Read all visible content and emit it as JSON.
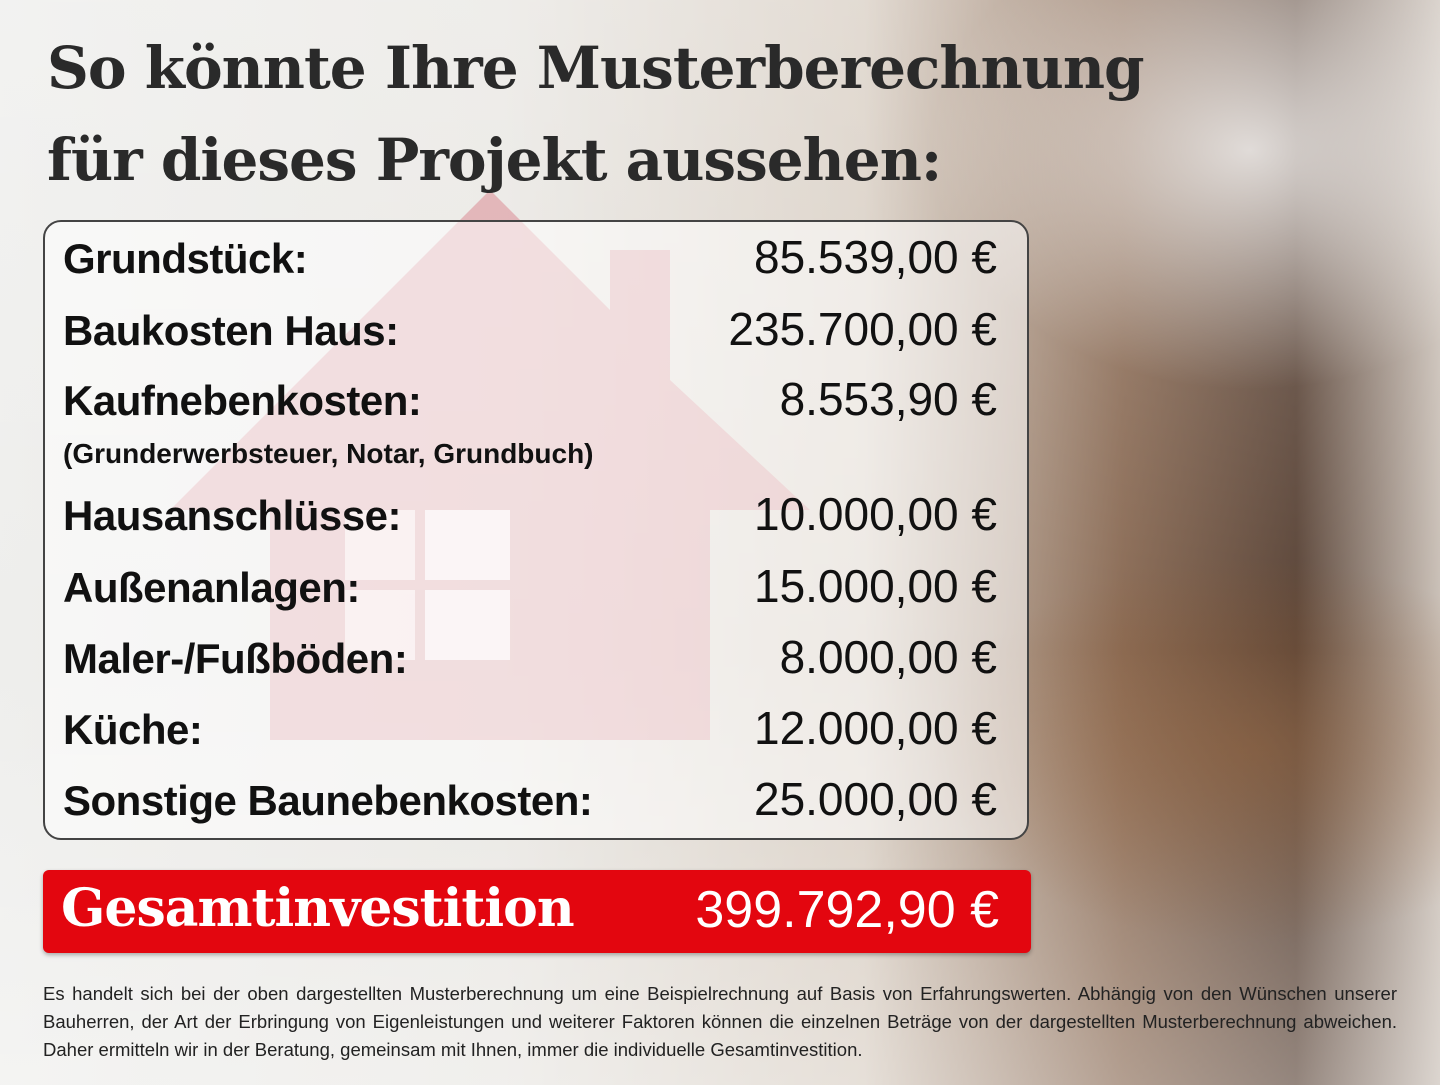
{
  "title_line1": "So könnte Ihre Musterberechnung",
  "title_line2": "für dieses Projekt aussehen:",
  "items": [
    {
      "label": "Grundstück:",
      "value": "85.539,00 €"
    },
    {
      "label": "Baukosten Haus:",
      "value": "235.700,00 €"
    },
    {
      "label": "Kaufnebenkosten:",
      "value": "8.553,90 €",
      "note": "(Grunderwerbsteuer, Notar, Grundbuch)"
    },
    {
      "label": "Hausanschlüsse:",
      "value": "10.000,00 €"
    },
    {
      "label": "Außenanlagen:",
      "value": "15.000,00 €"
    },
    {
      "label": "Maler-/Fußböden:",
      "value": "8.000,00 €"
    },
    {
      "label": "Küche:",
      "value": "12.000,00 €"
    },
    {
      "label": "Sonstige Baunebenkosten:",
      "value": "25.000,00 €"
    }
  ],
  "total": {
    "label": "Gesamtinvestition",
    "value": "399.792,90 €"
  },
  "disclaimer": "Es handelt sich bei der oben dargestellten Musterberechnung um eine Beispielrechnung auf Basis von Erfahrungswerten. Abhängig von den Wünschen unserer Bauherren, der Art der Erbringung von Eigenleistungen und weiterer Faktoren können die einzelnen Beträge von der dargestellten Musterberechnung abweichen. Daher ermitteln wir in der Beratung, gemeinsam mit Ihnen, immer die individuelle Gesamtinvestition.",
  "colors": {
    "accent": "#e3060f",
    "text": "#111111"
  }
}
